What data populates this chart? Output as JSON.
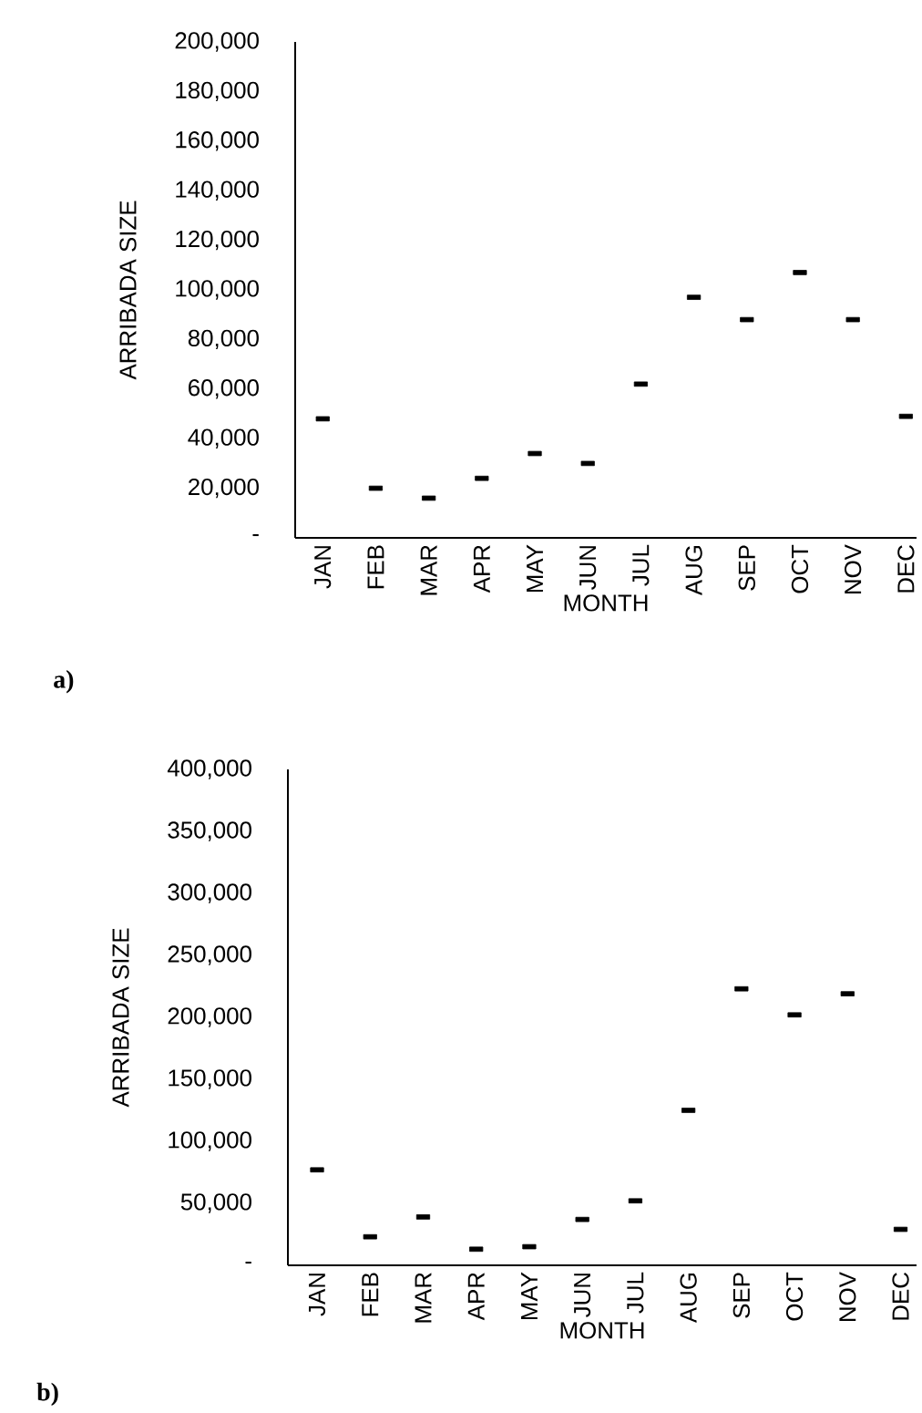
{
  "chart_data": [
    {
      "type": "scatter",
      "categories": [
        "JAN",
        "FEB",
        "MAR",
        "APR",
        "MAY",
        "JUN",
        "JUL",
        "AUG",
        "SEP",
        "OCT",
        "NOV",
        "DEC"
      ],
      "values": [
        48000,
        20000,
        16000,
        24000,
        34000,
        30000,
        62000,
        97000,
        88000,
        107000,
        88000,
        49000
      ],
      "color": "#000000",
      "xlabel": "MONTH",
      "ylabel": "ARRIBADA SIZE",
      "ylim": [
        0,
        200000
      ],
      "yticks": [
        {
          "value": 0,
          "label": "-"
        },
        {
          "value": 20000,
          "label": "20,000"
        },
        {
          "value": 40000,
          "label": "40,000"
        },
        {
          "value": 60000,
          "label": "60,000"
        },
        {
          "value": 80000,
          "label": "80,000"
        },
        {
          "value": 100000,
          "label": "100,000"
        },
        {
          "value": 120000,
          "label": "120,000"
        },
        {
          "value": 140000,
          "label": "140,000"
        },
        {
          "value": 160000,
          "label": "160,000"
        },
        {
          "value": 180000,
          "label": "180,000"
        },
        {
          "value": 200000,
          "label": "200,000"
        }
      ],
      "annotations": [
        "a)"
      ]
    },
    {
      "type": "scatter",
      "categories": [
        "JAN",
        "FEB",
        "MAR",
        "APR",
        "MAY",
        "JUN",
        "JUL",
        "AUG",
        "SEP",
        "OCT",
        "NOV",
        "DEC"
      ],
      "values": [
        77000,
        23000,
        39000,
        13000,
        15000,
        37000,
        52000,
        125000,
        223000,
        202000,
        219000,
        29000
      ],
      "color": "#000000",
      "xlabel": "MONTH",
      "ylabel": "ARRIBADA SIZE",
      "ylim": [
        0,
        400000
      ],
      "yticks": [
        {
          "value": 0,
          "label": "-"
        },
        {
          "value": 50000,
          "label": "50,000"
        },
        {
          "value": 100000,
          "label": "100,000"
        },
        {
          "value": 150000,
          "label": "150,000"
        },
        {
          "value": 200000,
          "label": "200,000"
        },
        {
          "value": 250000,
          "label": "250,000"
        },
        {
          "value": 300000,
          "label": "300,000"
        },
        {
          "value": 350000,
          "label": "350,000"
        },
        {
          "value": 400000,
          "label": "400,000"
        }
      ],
      "annotations": [
        "b)"
      ]
    }
  ]
}
